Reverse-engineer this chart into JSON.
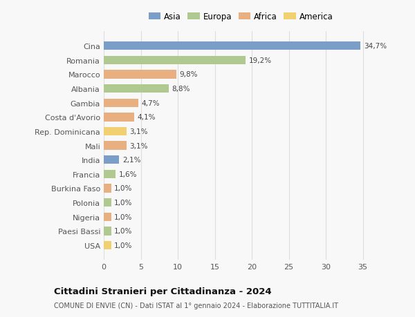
{
  "countries": [
    "Cina",
    "Romania",
    "Marocco",
    "Albania",
    "Gambia",
    "Costa d'Avorio",
    "Rep. Dominicana",
    "Mali",
    "India",
    "Francia",
    "Burkina Faso",
    "Polonia",
    "Nigeria",
    "Paesi Bassi",
    "USA"
  ],
  "values": [
    34.7,
    19.2,
    9.8,
    8.8,
    4.7,
    4.1,
    3.1,
    3.1,
    2.1,
    1.6,
    1.0,
    1.0,
    1.0,
    1.0,
    1.0
  ],
  "labels": [
    "34,7%",
    "19,2%",
    "9,8%",
    "8,8%",
    "4,7%",
    "4,1%",
    "3,1%",
    "3,1%",
    "2,1%",
    "1,6%",
    "1,0%",
    "1,0%",
    "1,0%",
    "1,0%",
    "1,0%"
  ],
  "continents": [
    "Asia",
    "Europa",
    "Africa",
    "Europa",
    "Africa",
    "Africa",
    "America",
    "Africa",
    "Asia",
    "Europa",
    "Africa",
    "Europa",
    "Africa",
    "Europa",
    "America"
  ],
  "colors": {
    "Asia": "#7b9ec9",
    "Europa": "#b0c990",
    "Africa": "#e8b080",
    "America": "#f0d070"
  },
  "legend_order": [
    "Asia",
    "Europa",
    "Africa",
    "America"
  ],
  "title": "Cittadini Stranieri per Cittadinanza - 2024",
  "subtitle": "COMUNE DI ENVIE (CN) - Dati ISTAT al 1° gennaio 2024 - Elaborazione TUTTITALIA.IT",
  "xlim": [
    0,
    37
  ],
  "xticks": [
    0,
    5,
    10,
    15,
    20,
    25,
    30,
    35
  ],
  "background_color": "#f8f8f8",
  "grid_color": "#dddddd",
  "bar_height": 0.6
}
